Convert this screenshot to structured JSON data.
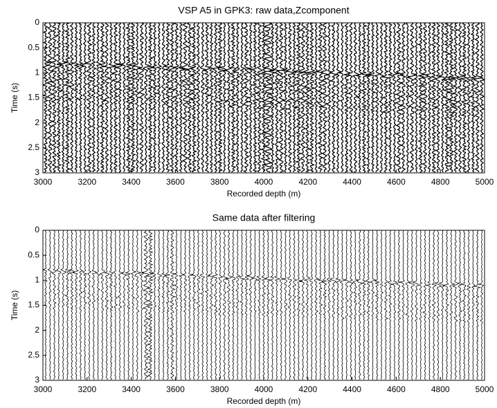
{
  "chart_data": [
    {
      "type": "wiggle",
      "title": "VSP A5 in GPK3: raw data,Zcomponent",
      "xlabel": "Recorded depth (m)",
      "ylabel": "Time (s)",
      "xlim": [
        3000,
        5000
      ],
      "xticks": [
        3000,
        3200,
        3400,
        3600,
        3800,
        4000,
        4200,
        4400,
        4600,
        4800,
        5000
      ],
      "ylim": [
        0,
        3
      ],
      "yticks": [
        0,
        0.5,
        1,
        1.5,
        2,
        2.5,
        3
      ],
      "y_inverted": true,
      "color": "#000000"
    },
    {
      "type": "wiggle",
      "title": "Same data after filtering",
      "xlabel": "Recorded depth (m)",
      "ylabel": "Time (s)",
      "xlim": [
        3000,
        5000
      ],
      "xticks": [
        3000,
        3200,
        3400,
        3600,
        3800,
        4000,
        4200,
        4400,
        4600,
        4800,
        5000
      ],
      "ylim": [
        0,
        3
      ],
      "yticks": [
        0,
        0.5,
        1,
        1.5,
        2,
        2.5,
        3
      ],
      "y_inverted": true,
      "color": "#000000"
    }
  ]
}
